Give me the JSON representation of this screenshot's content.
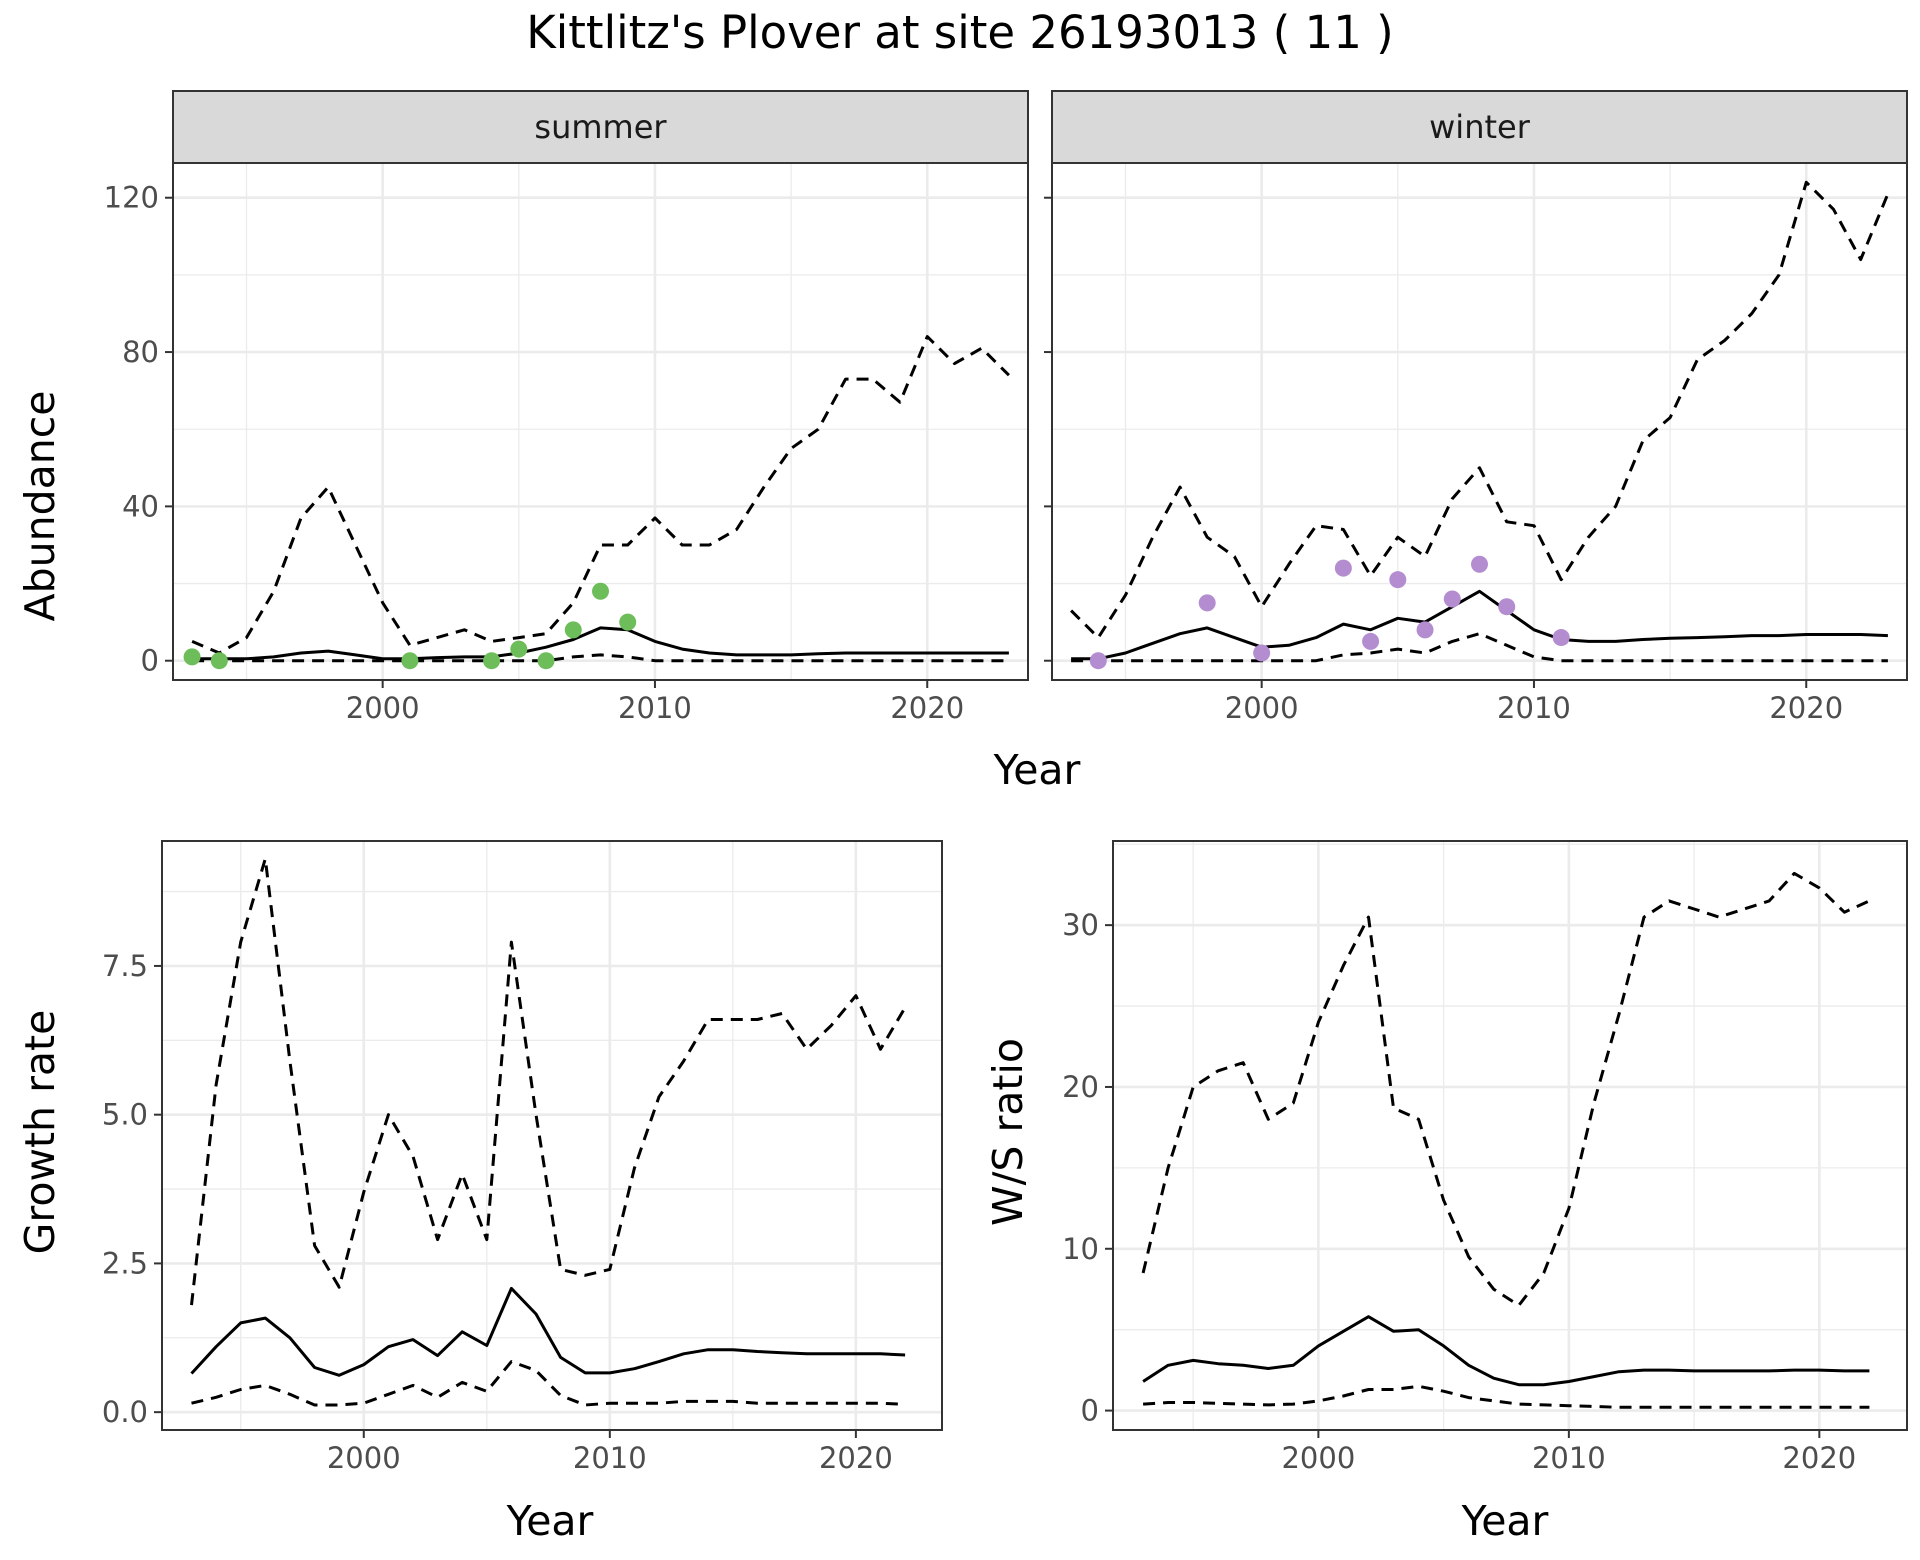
{
  "title": "Kittlitz's Plover at site 26193013 ( 11 )",
  "colors": {
    "summer_points": "#6dbd5a",
    "winter_points": "#b48cd0",
    "line": "#000000",
    "grid": "#ebebeb",
    "strip_fill": "#d9d9d9"
  },
  "chart_data": [
    {
      "type": "line",
      "panel": "summer",
      "strip_label": "summer",
      "ylabel": "Abundance",
      "xlabel": "Year",
      "x_ticks": [
        2000,
        2010,
        2020
      ],
      "y_ticks": [
        0,
        40,
        80,
        120
      ],
      "xlim": [
        1992.3,
        2023.7
      ],
      "ylim": [
        -5,
        129
      ],
      "x": [
        1993,
        1994,
        1995,
        1996,
        1997,
        1998,
        1999,
        2000,
        2001,
        2002,
        2003,
        2004,
        2005,
        2006,
        2007,
        2008,
        2009,
        2010,
        2011,
        2012,
        2013,
        2014,
        2015,
        2016,
        2017,
        2018,
        2019,
        2020,
        2021,
        2022,
        2023
      ],
      "series": [
        {
          "role": "estimate",
          "style": "solid",
          "values": [
            0.5,
            0.5,
            0.5,
            1,
            2,
            2.5,
            1.5,
            0.5,
            0.5,
            0.8,
            1,
            1,
            2,
            3.5,
            5.5,
            8.5,
            8,
            5,
            3,
            2,
            1.5,
            1.5,
            1.5,
            1.8,
            2,
            2,
            2,
            2,
            2,
            2,
            2
          ]
        },
        {
          "role": "upper",
          "style": "dashed",
          "values": [
            5,
            2,
            6,
            18,
            37,
            45,
            30,
            15,
            4,
            6,
            8,
            5,
            6,
            7,
            15,
            30,
            30,
            37,
            30,
            30,
            34,
            45,
            55,
            60,
            73,
            73,
            67,
            84,
            77,
            81,
            74
          ]
        },
        {
          "role": "lower",
          "style": "dashed",
          "values": [
            0,
            0,
            0,
            0,
            0,
            0,
            0,
            0,
            0,
            0,
            0,
            0,
            0,
            0,
            1,
            1.5,
            1,
            0,
            0,
            0,
            0,
            0,
            0,
            0,
            0,
            0,
            0,
            0,
            0,
            0,
            0
          ]
        }
      ],
      "points": [
        {
          "x": 1993,
          "y": 1
        },
        {
          "x": 1994,
          "y": 0
        },
        {
          "x": 2001,
          "y": 0
        },
        {
          "x": 2004,
          "y": 0
        },
        {
          "x": 2005,
          "y": 3
        },
        {
          "x": 2006,
          "y": 0
        },
        {
          "x": 2007,
          "y": 8
        },
        {
          "x": 2008,
          "y": 18
        },
        {
          "x": 2009,
          "y": 10
        }
      ]
    },
    {
      "type": "line",
      "panel": "winter",
      "strip_label": "winter",
      "xlabel": "Year",
      "x_ticks": [
        2000,
        2010,
        2020
      ],
      "y_ticks": [
        0,
        40,
        80,
        120
      ],
      "xlim": [
        1992.3,
        2023.7
      ],
      "ylim": [
        -5,
        129
      ],
      "x": [
        1993,
        1994,
        1995,
        1996,
        1997,
        1998,
        1999,
        2000,
        2001,
        2002,
        2003,
        2004,
        2005,
        2006,
        2007,
        2008,
        2009,
        2010,
        2011,
        2012,
        2013,
        2014,
        2015,
        2016,
        2017,
        2018,
        2019,
        2020,
        2021,
        2022,
        2023
      ],
      "series": [
        {
          "role": "estimate",
          "style": "solid",
          "values": [
            0.5,
            0.5,
            2,
            4.5,
            7,
            8.5,
            6,
            3.5,
            4,
            6,
            9.5,
            8,
            11,
            10,
            14,
            18,
            13,
            8,
            5.5,
            5,
            5,
            5.5,
            5.8,
            6,
            6.2,
            6.5,
            6.5,
            6.8,
            6.8,
            6.8,
            6.5
          ]
        },
        {
          "role": "upper",
          "style": "dashed",
          "values": [
            13,
            6,
            17,
            32,
            45,
            32,
            27,
            14,
            25,
            35,
            34,
            22,
            32,
            27,
            42,
            50,
            36,
            35,
            21,
            32,
            40,
            57,
            63,
            78,
            83,
            90,
            100,
            124,
            117,
            104,
            121
          ]
        },
        {
          "role": "lower",
          "style": "dashed",
          "values": [
            0,
            0,
            0,
            0,
            0,
            0,
            0,
            0,
            0,
            0,
            1.5,
            2,
            3,
            2,
            5,
            7,
            4,
            1,
            0,
            0,
            0,
            0,
            0,
            0,
            0,
            0,
            0,
            0,
            0,
            0,
            0
          ]
        }
      ],
      "points": [
        {
          "x": 1994,
          "y": 0
        },
        {
          "x": 1998,
          "y": 15
        },
        {
          "x": 2000,
          "y": 2
        },
        {
          "x": 2003,
          "y": 24
        },
        {
          "x": 2004,
          "y": 5
        },
        {
          "x": 2005,
          "y": 21
        },
        {
          "x": 2006,
          "y": 8
        },
        {
          "x": 2007,
          "y": 16
        },
        {
          "x": 2008,
          "y": 25
        },
        {
          "x": 2009,
          "y": 14
        },
        {
          "x": 2011,
          "y": 6
        }
      ]
    },
    {
      "type": "line",
      "panel": "growth",
      "ylabel": "Growth rate",
      "xlabel": "Year",
      "x_ticks": [
        2000,
        2010,
        2020
      ],
      "y_ticks": [
        0.0,
        2.5,
        5.0,
        7.5
      ],
      "y_tick_labels": [
        "0.0",
        "2.5",
        "5.0",
        "7.5"
      ],
      "xlim": [
        1991.8,
        2023.5
      ],
      "ylim": [
        -0.3,
        9.6
      ],
      "x": [
        1993,
        1994,
        1995,
        1996,
        1997,
        1998,
        1999,
        2000,
        2001,
        2002,
        2003,
        2004,
        2005,
        2006,
        2007,
        2008,
        2009,
        2010,
        2011,
        2012,
        2013,
        2014,
        2015,
        2016,
        2017,
        2018,
        2019,
        2020,
        2021,
        2022
      ],
      "series": [
        {
          "role": "estimate",
          "style": "solid",
          "values": [
            0.65,
            1.1,
            1.5,
            1.58,
            1.25,
            0.75,
            0.62,
            0.8,
            1.1,
            1.22,
            0.95,
            1.35,
            1.12,
            2.08,
            1.65,
            0.92,
            0.66,
            0.66,
            0.73,
            0.85,
            0.98,
            1.05,
            1.05,
            1.02,
            1,
            0.98,
            0.98,
            0.98,
            0.98,
            0.96
          ]
        },
        {
          "role": "upper",
          "style": "dashed",
          "values": [
            1.8,
            5.5,
            7.9,
            9.3,
            5.9,
            2.8,
            2.1,
            3.7,
            5,
            4.3,
            2.9,
            4,
            2.9,
            7.9,
            5,
            2.4,
            2.3,
            2.4,
            4.1,
            5.3,
            5.9,
            6.6,
            6.6,
            6.6,
            6.7,
            6.1,
            6.5,
            7,
            6.1,
            6.8
          ]
        },
        {
          "role": "lower",
          "style": "dashed",
          "values": [
            0.15,
            0.25,
            0.38,
            0.45,
            0.3,
            0.12,
            0.12,
            0.15,
            0.3,
            0.45,
            0.25,
            0.5,
            0.35,
            0.85,
            0.7,
            0.28,
            0.12,
            0.15,
            0.15,
            0.15,
            0.18,
            0.18,
            0.18,
            0.15,
            0.15,
            0.15,
            0.15,
            0.15,
            0.15,
            0.13
          ]
        }
      ]
    },
    {
      "type": "line",
      "panel": "ratio",
      "ylabel": "W/S ratio",
      "xlabel": "Year",
      "x_ticks": [
        2000,
        2010,
        2020
      ],
      "y_ticks": [
        0,
        10,
        20,
        30
      ],
      "xlim": [
        1991.8,
        2023.5
      ],
      "ylim": [
        -1.2,
        35.2
      ],
      "x": [
        1993,
        1994,
        1995,
        1996,
        1997,
        1998,
        1999,
        2000,
        2001,
        2002,
        2003,
        2004,
        2005,
        2006,
        2007,
        2008,
        2009,
        2010,
        2011,
        2012,
        2013,
        2014,
        2015,
        2016,
        2017,
        2018,
        2019,
        2020,
        2021,
        2022
      ],
      "series": [
        {
          "role": "estimate",
          "style": "solid",
          "values": [
            1.8,
            2.8,
            3.1,
            2.9,
            2.8,
            2.6,
            2.8,
            4.0,
            4.9,
            5.8,
            4.9,
            5.0,
            4.0,
            2.8,
            2.0,
            1.6,
            1.6,
            1.8,
            2.1,
            2.4,
            2.5,
            2.5,
            2.45,
            2.45,
            2.45,
            2.45,
            2.5,
            2.5,
            2.45,
            2.45
          ]
        },
        {
          "role": "upper",
          "style": "dashed",
          "values": [
            8.5,
            15,
            20,
            21,
            21.5,
            18,
            19,
            24,
            27.5,
            30.5,
            18.7,
            18,
            13,
            9.5,
            7.5,
            6.5,
            8.5,
            12.5,
            19,
            24.5,
            30.5,
            31.5,
            31,
            30.5,
            31,
            31.5,
            33.2,
            32.3,
            30.8,
            31.5
          ]
        },
        {
          "role": "lower",
          "style": "dashed",
          "values": [
            0.4,
            0.5,
            0.5,
            0.45,
            0.4,
            0.35,
            0.4,
            0.6,
            0.9,
            1.3,
            1.3,
            1.5,
            1.2,
            0.8,
            0.6,
            0.4,
            0.35,
            0.3,
            0.25,
            0.2,
            0.2,
            0.2,
            0.2,
            0.2,
            0.2,
            0.2,
            0.2,
            0.2,
            0.2,
            0.2
          ]
        }
      ]
    }
  ]
}
